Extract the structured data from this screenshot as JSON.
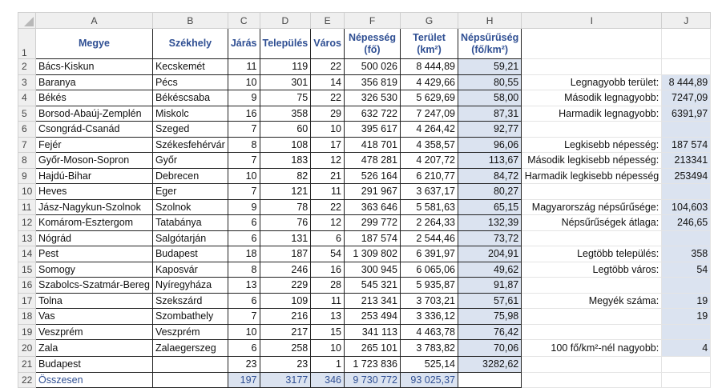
{
  "columns": [
    "A",
    "B",
    "C",
    "D",
    "E",
    "F",
    "G",
    "H",
    "I",
    "J"
  ],
  "headers": [
    "Megye",
    "Székhely",
    "Járás",
    "Település",
    "Város",
    "Népesség (fő)",
    "Terület (km²)",
    "Népsűrűség (fő/km²)"
  ],
  "rows": [
    [
      "Bács-Kiskun",
      "Kecskemét",
      "11",
      "119",
      "22",
      "500 026",
      "8 444,89",
      "59,21"
    ],
    [
      "Baranya",
      "Pécs",
      "10",
      "301",
      "14",
      "356 819",
      "4 429,66",
      "80,55"
    ],
    [
      "Békés",
      "Békéscsaba",
      "9",
      "75",
      "22",
      "326 530",
      "5 629,69",
      "58,00"
    ],
    [
      "Borsod-Abaúj-Zemplén",
      "Miskolc",
      "16",
      "358",
      "29",
      "632 722",
      "7 247,09",
      "87,31"
    ],
    [
      "Csongrád-Csanád",
      "Szeged",
      "7",
      "60",
      "10",
      "395 617",
      "4 264,42",
      "92,77"
    ],
    [
      "Fejér",
      "Székesfehérvár",
      "8",
      "108",
      "17",
      "418 701",
      "4 358,57",
      "96,06"
    ],
    [
      "Győr-Moson-Sopron",
      "Győr",
      "7",
      "183",
      "12",
      "478 281",
      "4 207,72",
      "113,67"
    ],
    [
      "Hajdú-Bihar",
      "Debrecen",
      "10",
      "82",
      "21",
      "526 164",
      "6 210,77",
      "84,72"
    ],
    [
      "Heves",
      "Eger",
      "7",
      "121",
      "11",
      "291 967",
      "3 637,17",
      "80,27"
    ],
    [
      "Jász-Nagykun-Szolnok",
      "Szolnok",
      "9",
      "78",
      "22",
      "363 646",
      "5 581,63",
      "65,15"
    ],
    [
      "Komárom-Esztergom",
      "Tatabánya",
      "6",
      "76",
      "12",
      "299 772",
      "2 264,33",
      "132,39"
    ],
    [
      "Nógrád",
      "Salgótarján",
      "6",
      "131",
      "6",
      "187 574",
      "2 544,46",
      "73,72"
    ],
    [
      "Pest",
      "Budapest",
      "18",
      "187",
      "54",
      "1 309 802",
      "6 391,97",
      "204,91"
    ],
    [
      "Somogy",
      "Kaposvár",
      "8",
      "246",
      "16",
      "300 945",
      "6 065,06",
      "49,62"
    ],
    [
      "Szabolcs-Szatmár-Bereg",
      "Nyíregyháza",
      "13",
      "229",
      "28",
      "545 321",
      "5 935,87",
      "91,87"
    ],
    [
      "Tolna",
      "Szekszárd",
      "6",
      "109",
      "11",
      "213 341",
      "3 703,21",
      "57,61"
    ],
    [
      "Vas",
      "Szombathely",
      "7",
      "216",
      "13",
      "253 494",
      "3 336,12",
      "75,98"
    ],
    [
      "Veszprém",
      "Veszprém",
      "10",
      "217",
      "15",
      "341 113",
      "4 463,78",
      "76,42"
    ],
    [
      "Zala",
      "Zalaegerszeg",
      "6",
      "258",
      "10",
      "265 101",
      "3 783,82",
      "70,06"
    ],
    [
      "Budapest",
      "",
      "23",
      "23",
      "1",
      "1 723 836",
      "525,14",
      "3282,62"
    ],
    [
      "Összesen",
      "",
      "197",
      "3177",
      "346",
      "9 730 772",
      "93 025,37",
      ""
    ]
  ],
  "summary": {
    "3": [
      "Legnagyobb terület:",
      "8 444,89"
    ],
    "4": [
      "Második legnagyobb:",
      "7247,09"
    ],
    "5": [
      "Harmadik legnagyobb:",
      "6391,97"
    ],
    "7": [
      "Legkisebb népesség:",
      "187 574"
    ],
    "8": [
      "Második legkisebb népesség:",
      "213341"
    ],
    "9": [
      "Harmadik legkisebb népesség",
      "253494"
    ],
    "11": [
      "Magyarország népsűrűsége:",
      "104,603"
    ],
    "12": [
      "Népsűrűségek átlaga:",
      "246,65"
    ],
    "14": [
      "Legtöbb település:",
      "358"
    ],
    "15": [
      "Legtöbb város:",
      "54"
    ],
    "17": [
      "Megyék száma:",
      "19"
    ],
    "18": [
      "",
      "19"
    ],
    "20": [
      "100 fő/km²-nél nagyobb:",
      "4"
    ]
  },
  "colors": {
    "header_text": "#2f4f93",
    "fill": "#dbe3f0"
  }
}
